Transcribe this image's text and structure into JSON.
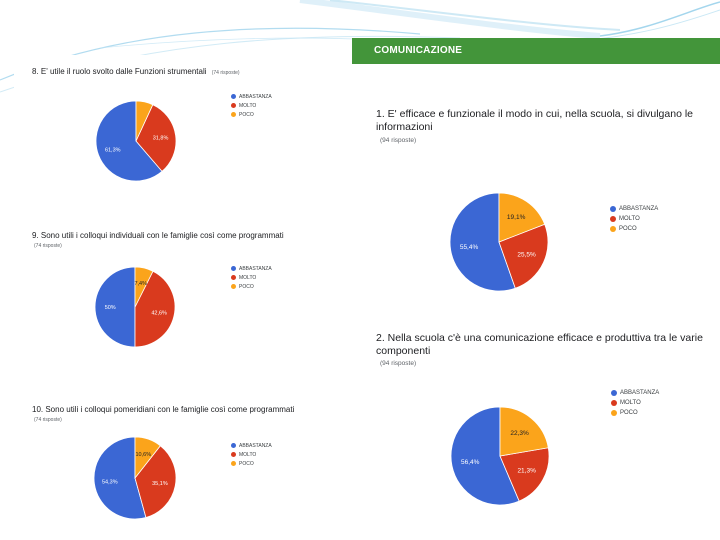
{
  "theme": {
    "green": "#43953a",
    "blue": "#3b67d4",
    "red": "#d93a1e",
    "orange": "#fba41b"
  },
  "left_charts": [
    {
      "question": "8. E' utile il ruolo svolto dalle Funzioni strumentali",
      "responses": "(74 risposte)"
    },
    {
      "question": "9. Sono utili i colloqui individuali con le famiglie così come programmati",
      "responses": "(74 risposte)"
    },
    {
      "question": "10. Sono utili i colloqui pomeridiani con le famiglie così come programmati",
      "responses": "(74 risposte)"
    }
  ],
  "right_panel": {
    "section_title": "COMUNICAZIONE",
    "charts": [
      {
        "question": "1. E' efficace e funzionale il modo in cui, nella scuola, si divulgano le informazioni",
        "responses": "(94 risposte)"
      },
      {
        "question": "2. Nella scuola c'è una comunicazione efficace e produttiva tra le varie componenti",
        "responses": "(94 risposte)"
      }
    ]
  },
  "chart_data": [
    {
      "type": "pie",
      "title": "8. E' utile il ruolo svolto dalle Funzioni strumentali",
      "categories": [
        "ABBASTANZA",
        "MOLTO",
        "POCO"
      ],
      "values": [
        61.3,
        31.8,
        6.9
      ],
      "value_labels": [
        "61,3%",
        "31,8%",
        ""
      ],
      "colors": [
        "#3b67d4",
        "#d93a1e",
        "#fba41b"
      ]
    },
    {
      "type": "pie",
      "title": "9. Sono utili i colloqui individuali con le famiglie così come programmati",
      "categories": [
        "ABBASTANZA",
        "MOLTO",
        "POCO"
      ],
      "values": [
        50,
        42.6,
        7.4
      ],
      "value_labels": [
        "50%",
        "42,6%",
        "7,4%"
      ],
      "colors": [
        "#3b67d4",
        "#d93a1e",
        "#fba41b"
      ]
    },
    {
      "type": "pie",
      "title": "10. Sono utili i colloqui pomeridiani con le famiglie così come programmati",
      "categories": [
        "ABBASTANZA",
        "MOLTO",
        "POCO"
      ],
      "values": [
        54.3,
        35.1,
        10.6
      ],
      "value_labels": [
        "54,3%",
        "35,1%",
        "10,6%"
      ],
      "colors": [
        "#3b67d4",
        "#d93a1e",
        "#fba41b"
      ]
    },
    {
      "type": "pie",
      "title": "1. E' efficace e funzionale il modo in cui, nella scuola, si divulgano le informazioni",
      "categories": [
        "ABBASTANZA",
        "MOLTO",
        "POCO"
      ],
      "values": [
        55.4,
        25.5,
        19.1
      ],
      "value_labels": [
        "55,4%",
        "25,5%",
        "19,1%"
      ],
      "colors": [
        "#3b67d4",
        "#d93a1e",
        "#fba41b"
      ]
    },
    {
      "type": "pie",
      "title": "2. Nella scuola c'è una comunicazione efficace e produttiva tra le varie componenti",
      "categories": [
        "ABBASTANZA",
        "MOLTO",
        "POCO"
      ],
      "values": [
        56.4,
        21.3,
        22.3
      ],
      "value_labels": [
        "56,4%",
        "21,3%",
        "22,3%"
      ],
      "colors": [
        "#3b67d4",
        "#d93a1e",
        "#fba41b"
      ]
    }
  ]
}
